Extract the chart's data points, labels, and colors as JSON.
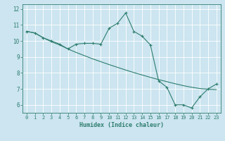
{
  "title": "",
  "xlabel": "Humidex (Indice chaleur)",
  "bg_color": "#cce5f0",
  "grid_color": "#ffffff",
  "line_color": "#2e7d6e",
  "xlim": [
    -0.5,
    23.5
  ],
  "ylim": [
    5.5,
    12.3
  ],
  "xticks": [
    0,
    1,
    2,
    3,
    4,
    5,
    6,
    7,
    8,
    9,
    10,
    11,
    12,
    13,
    14,
    15,
    16,
    17,
    18,
    19,
    20,
    21,
    22,
    23
  ],
  "yticks": [
    6,
    7,
    8,
    9,
    10,
    11,
    12
  ],
  "line1_x": [
    0,
    1,
    2,
    3,
    4,
    5,
    6,
    7,
    8,
    9,
    10,
    11,
    12,
    13,
    14,
    15,
    16,
    17,
    18,
    19,
    20,
    21,
    22,
    23
  ],
  "line1_y": [
    10.6,
    10.5,
    10.2,
    10.0,
    9.8,
    9.5,
    9.8,
    9.85,
    9.85,
    9.8,
    10.8,
    11.1,
    11.75,
    10.6,
    10.3,
    9.75,
    7.5,
    7.1,
    6.0,
    6.0,
    5.8,
    6.5,
    7.0,
    7.3
  ],
  "line2_x": [
    0,
    1,
    2,
    3,
    4,
    5,
    6,
    7,
    8,
    9,
    10,
    11,
    12,
    13,
    14,
    15,
    16,
    17,
    18,
    19,
    20,
    21,
    22,
    23
  ],
  "line2_y": [
    10.6,
    10.5,
    10.2,
    9.95,
    9.75,
    9.5,
    9.28,
    9.08,
    8.88,
    8.7,
    8.52,
    8.35,
    8.18,
    8.02,
    7.87,
    7.72,
    7.58,
    7.45,
    7.32,
    7.2,
    7.1,
    7.02,
    6.98,
    6.95
  ]
}
